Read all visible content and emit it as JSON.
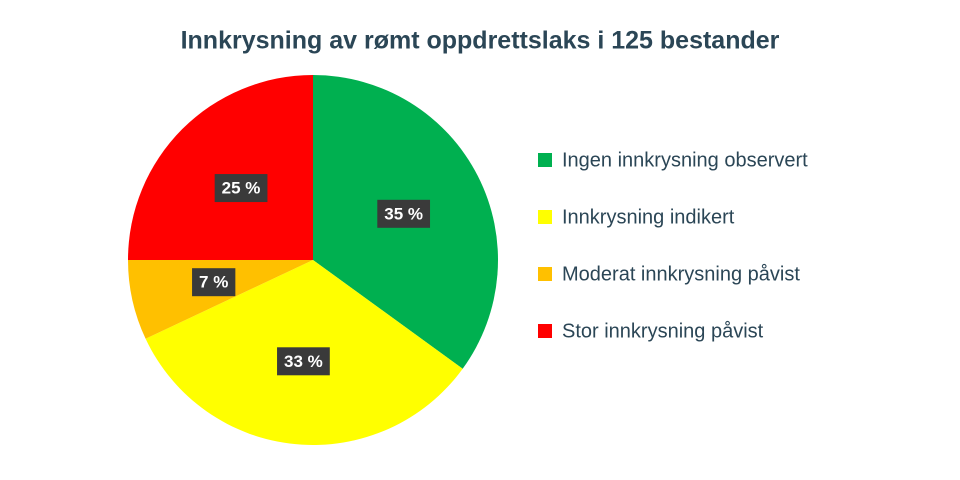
{
  "chart_data": {
    "type": "pie",
    "title": "Innkrysning av rømt oppdrettslaks i 125 bestander",
    "categories": [
      "Ingen innkrysning observert",
      "Innkrysning indikert",
      "Moderat innkrysning påvist",
      "Stor innkrysning påvist"
    ],
    "values": [
      35,
      33,
      7,
      25
    ],
    "value_labels": [
      "35 %",
      "33 %",
      "7 %",
      "25 %"
    ],
    "colors": [
      "#00b050",
      "#ffff00",
      "#ffc000",
      "#ff0000"
    ],
    "legend": "right"
  }
}
